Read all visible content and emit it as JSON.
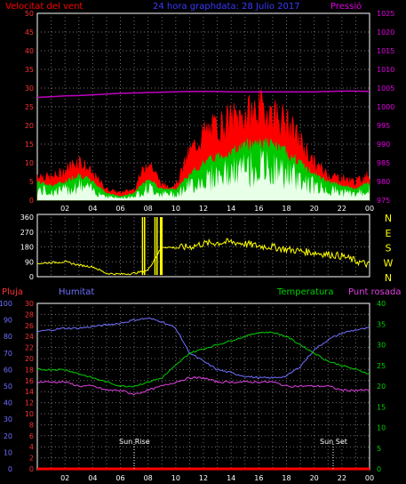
{
  "header": {
    "wind_title": "Velocitat del vent",
    "graph_title": "24 hora graphdata:  28 Julio 2017",
    "pressure_title": "Pressió"
  },
  "panel3_labels": {
    "rain": "Pluja",
    "humidity": "Humitat",
    "temperature": "Temperatura",
    "dewpoint": "Punt rosada",
    "sunrise": "Sun Rise",
    "sunset": "Sun Set"
  },
  "colors": {
    "wind_gust": "#ff0000",
    "wind_avg": "#00c800",
    "wind_low": "#e8ffe8",
    "pressure": "#c000c0",
    "direction": "#ffff00",
    "humidity": "#7070ff",
    "temperature": "#00d000",
    "dewpoint": "#e040e0",
    "rain": "#ff0000",
    "grid": "#707070"
  },
  "chart_data": [
    {
      "type": "area",
      "name": "wind",
      "title": "Velocitat del vent",
      "x_tick_labels": [
        "02",
        "04",
        "06",
        "08",
        "10",
        "12",
        "14",
        "16",
        "18",
        "20",
        "22",
        "00"
      ],
      "y_left_ticks": [
        0,
        5,
        10,
        15,
        20,
        25,
        30,
        35,
        40,
        45,
        50
      ],
      "y_left_range": [
        0,
        50
      ],
      "y_right_ticks": [
        975,
        980,
        985,
        990,
        995,
        1000,
        1005,
        1010,
        1015,
        1020,
        1025
      ],
      "y_right_range": [
        975,
        1025
      ],
      "hours": [
        0,
        1,
        2,
        3,
        4,
        5,
        6,
        7,
        8,
        9,
        10,
        11,
        12,
        13,
        14,
        15,
        16,
        17,
        18,
        19,
        20,
        21,
        22,
        23,
        24
      ],
      "series": [
        {
          "name": "gust",
          "values": [
            7,
            6,
            8,
            11,
            7,
            3,
            2,
            3,
            11,
            4,
            4,
            13,
            18,
            20,
            22,
            23,
            25,
            24,
            21,
            16,
            10,
            7,
            6,
            5,
            7
          ]
        },
        {
          "name": "average",
          "values": [
            5,
            4,
            5,
            7,
            5,
            2,
            1,
            2,
            6,
            3,
            3,
            7,
            10,
            12,
            13,
            15,
            16,
            15,
            13,
            10,
            7,
            5,
            4,
            3,
            5
          ]
        },
        {
          "name": "pressure",
          "values": [
            1002.5,
            1002.7,
            1002.9,
            1003.0,
            1003.2,
            1003.4,
            1003.6,
            1003.7,
            1003.8,
            1003.9,
            1004.0,
            1004.1,
            1004.1,
            1004.1,
            1004.0,
            1004.0,
            1004.0,
            1004.0,
            1004.0,
            1004.0,
            1004.0,
            1004.1,
            1004.2,
            1004.2,
            1004.1
          ]
        }
      ]
    },
    {
      "type": "line",
      "name": "wind-direction",
      "y_ticks": [
        0,
        90,
        180,
        270,
        360
      ],
      "y_range": [
        0,
        360
      ],
      "y_right_labels": [
        "N",
        "W",
        "S",
        "E",
        "N"
      ],
      "hours": [
        0,
        1,
        2,
        3,
        4,
        5,
        6,
        7,
        8,
        9,
        10,
        11,
        12,
        13,
        14,
        15,
        16,
        17,
        18,
        19,
        20,
        21,
        22,
        23,
        24
      ],
      "series": [
        {
          "name": "direction",
          "values": [
            80,
            85,
            90,
            70,
            60,
            20,
            15,
            20,
            40,
            180,
            175,
            180,
            200,
            205,
            210,
            200,
            185,
            180,
            165,
            155,
            145,
            135,
            125,
            95,
            70
          ]
        }
      ]
    },
    {
      "type": "line",
      "name": "thp",
      "y_left_ticks_rain": [
        0,
        2,
        4,
        6,
        8,
        10,
        12,
        14,
        16,
        18,
        20,
        22,
        24,
        26,
        28,
        30
      ],
      "y_left_ticks_humidity": [
        0,
        10,
        20,
        30,
        40,
        50,
        60,
        70,
        80,
        90,
        100
      ],
      "y_right_ticks": [
        0,
        5,
        10,
        15,
        20,
        25,
        30,
        35,
        40
      ],
      "hours": [
        0,
        1,
        2,
        3,
        4,
        5,
        6,
        7,
        8,
        9,
        10,
        11,
        12,
        13,
        14,
        15,
        16,
        17,
        18,
        19,
        20,
        21,
        22,
        23,
        24
      ],
      "series": [
        {
          "name": "humidity",
          "values": [
            83,
            84,
            85,
            85,
            86,
            87,
            88,
            90,
            91,
            89,
            85,
            70,
            65,
            60,
            58,
            56,
            55,
            55,
            56,
            62,
            72,
            78,
            82,
            84,
            85
          ]
        },
        {
          "name": "temperature",
          "values": [
            24,
            24,
            24,
            23,
            22,
            21,
            20,
            20,
            21,
            22,
            25,
            28,
            29,
            30,
            31,
            32,
            33,
            33,
            32,
            30,
            28,
            26,
            25,
            24,
            23
          ]
        },
        {
          "name": "dewpoint",
          "values": [
            21,
            21,
            21,
            20,
            20,
            19,
            19,
            18,
            19,
            20,
            21,
            22,
            22,
            21,
            21,
            21,
            21,
            21,
            20,
            20,
            20,
            20,
            19,
            19,
            19
          ]
        },
        {
          "name": "rain",
          "values": [
            0,
            0,
            0,
            0,
            0,
            0,
            0,
            0,
            0,
            0,
            0,
            0,
            0,
            0,
            0,
            0,
            0,
            0,
            0,
            0,
            0,
            0,
            0,
            0,
            0
          ]
        }
      ]
    }
  ]
}
